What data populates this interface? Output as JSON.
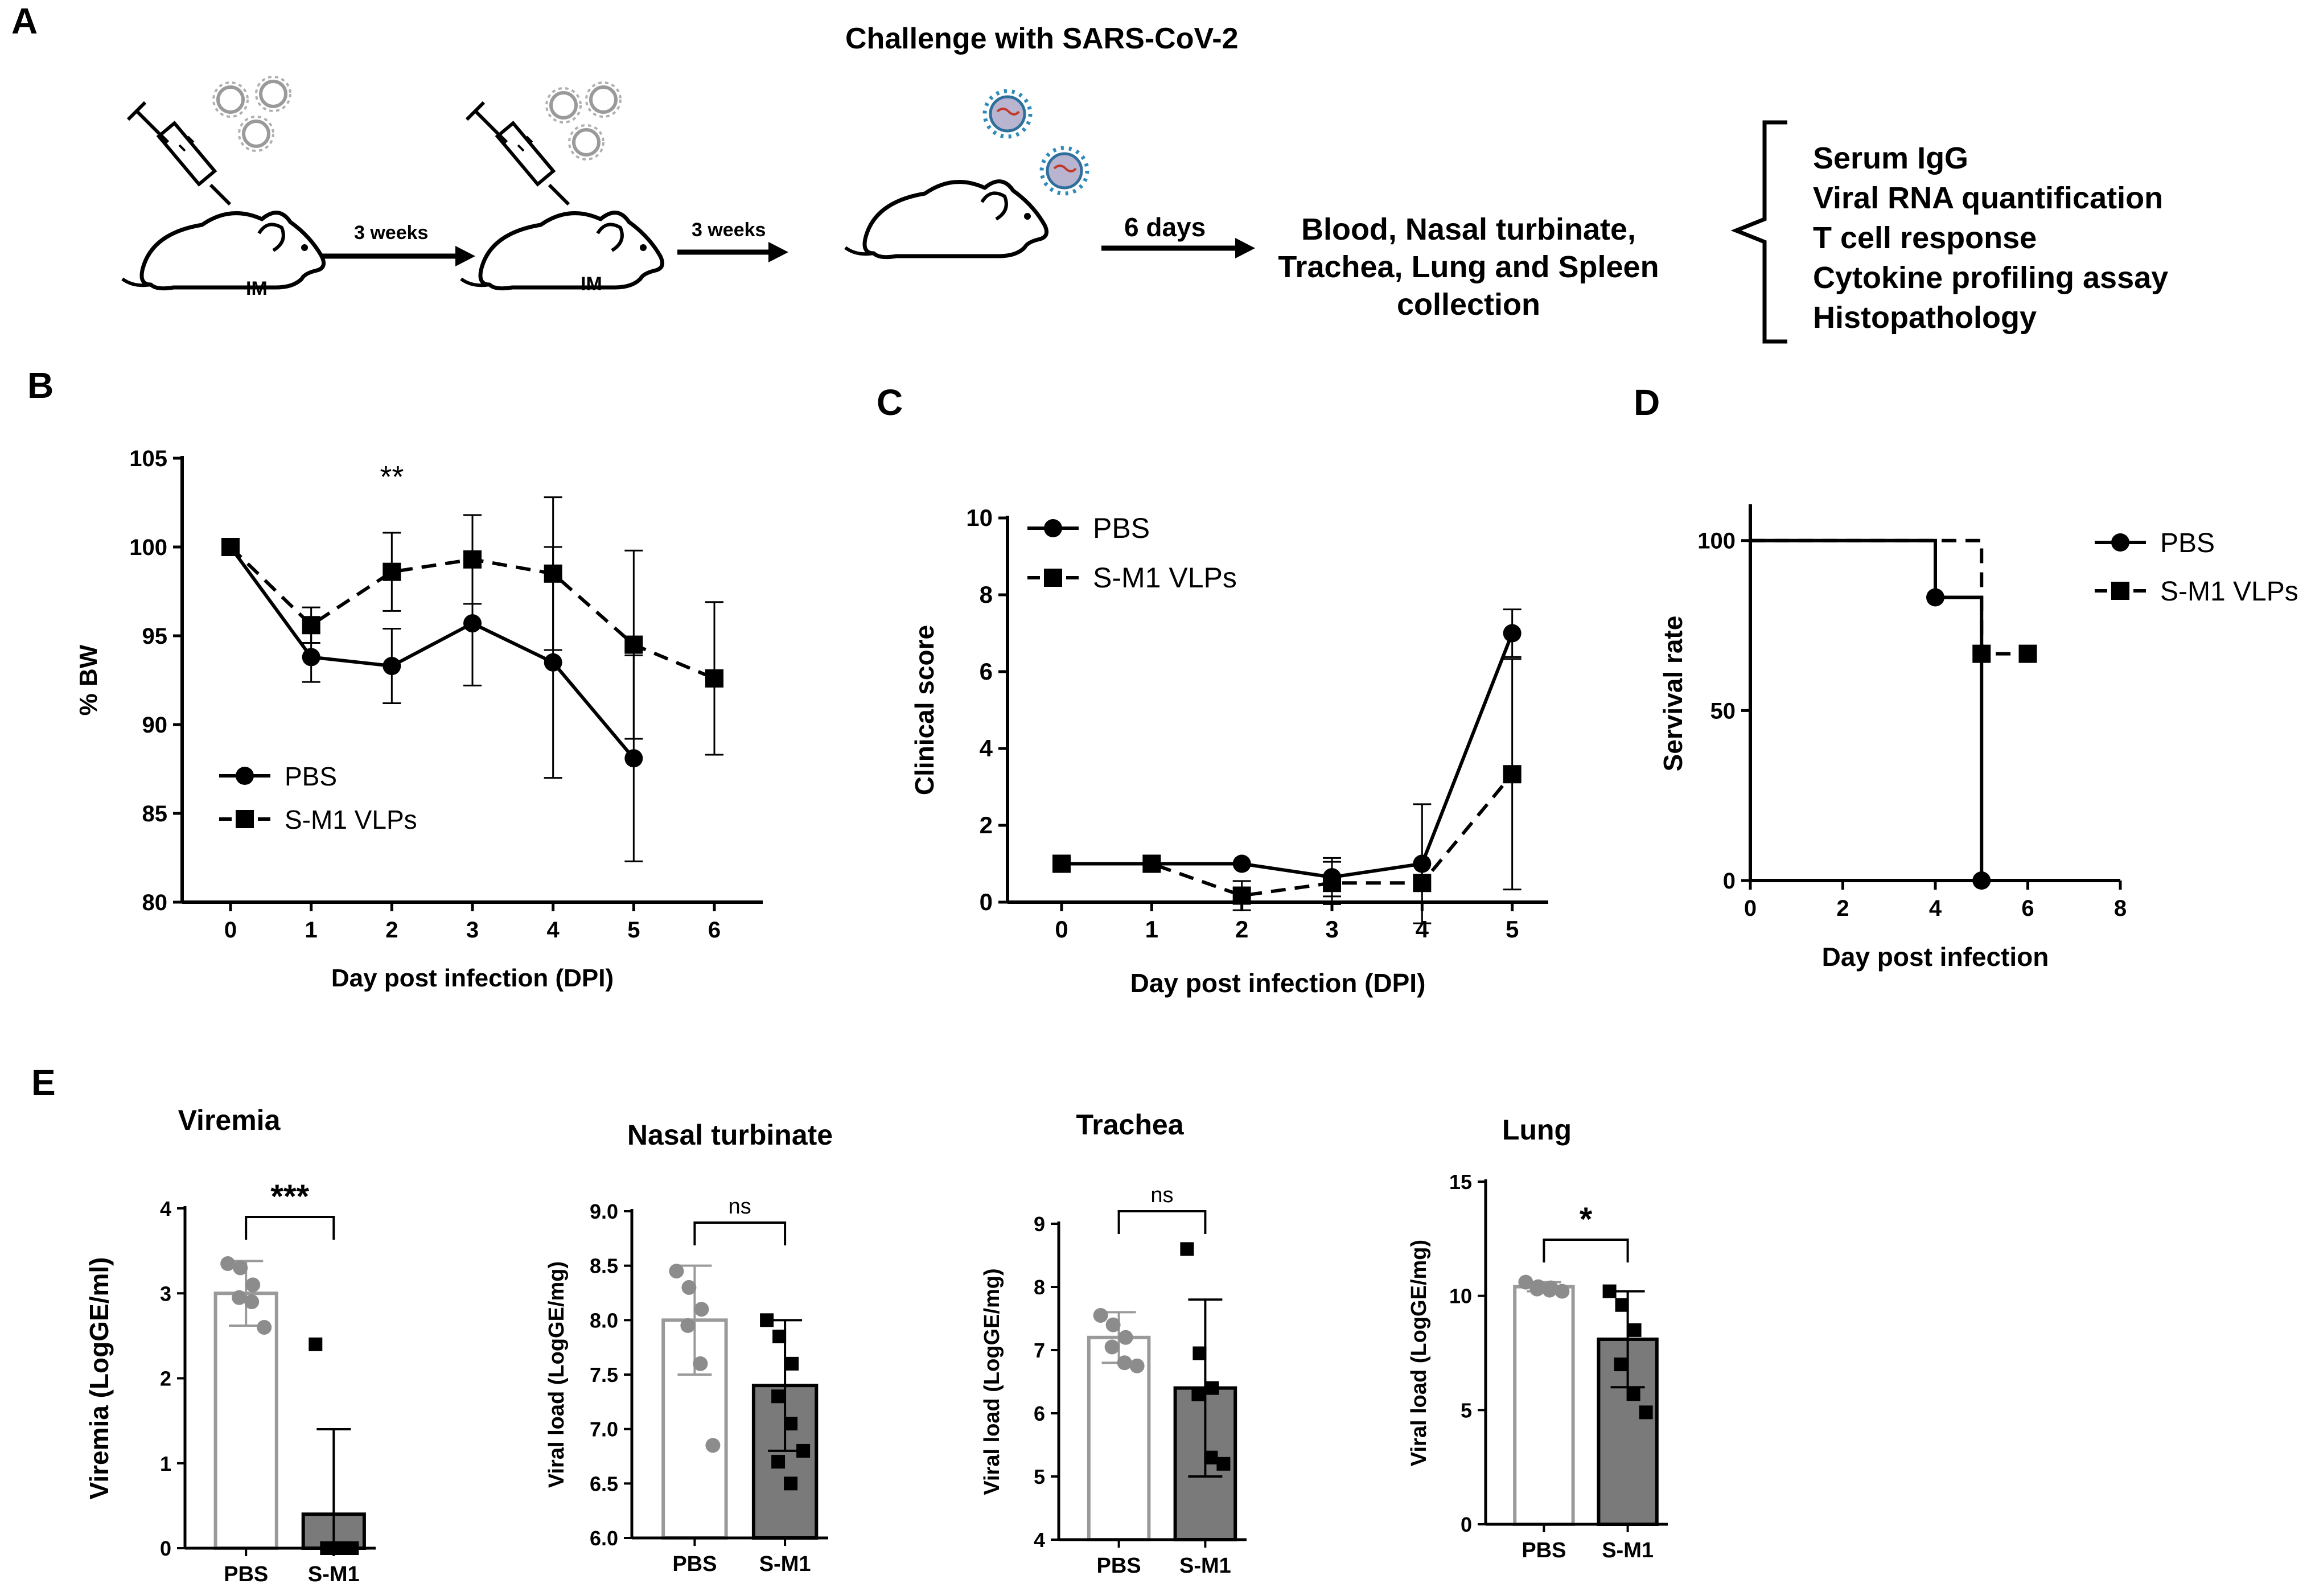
{
  "panels": {
    "A": "A",
    "B": "B",
    "C": "C",
    "D": "D",
    "E": "E"
  },
  "schematic": {
    "title": "Challenge with SARS-CoV-2",
    "route_label_1": "IM",
    "route_label_2": "IM",
    "interval_1": "3 weeks",
    "interval_2": "3 weeks",
    "interval_3": "6 days",
    "collection_lines": [
      "Blood, Nasal turbinate,",
      "Trachea, Lung and Spleen",
      "collection"
    ],
    "assays": [
      "Serum IgG",
      "Viral RNA quantification",
      "T cell response",
      "Cytokine profiling assay",
      "Histopathology"
    ]
  },
  "colors": {
    "pbs_bar_edge": "#9a9a9a",
    "pbs_points": "#8c8c8c",
    "sm1_bar_fill": "#7a7a7a",
    "line": "#000000"
  },
  "chart_data": [
    {
      "id": "B",
      "type": "line",
      "title": "",
      "xlabel": "Day post infection (DPI)",
      "ylabel": "% BW",
      "xlim": [
        -0.6,
        6.6
      ],
      "ylim": [
        80,
        105
      ],
      "xticks": [
        "0",
        "1",
        "2",
        "3",
        "4",
        "5",
        "6"
      ],
      "yticks": [
        "80",
        "85",
        "90",
        "95",
        "100",
        "105"
      ],
      "annotation": "**",
      "annotation_x": 2,
      "series": [
        {
          "name": "PBS",
          "marker": "circle",
          "dash": false,
          "x": [
            0,
            1,
            2,
            3,
            4,
            5
          ],
          "y": [
            100,
            93.8,
            93.3,
            95.7,
            93.5,
            88.1
          ],
          "err": [
            0,
            1.4,
            2.1,
            3.5,
            6.5,
            5.8
          ]
        },
        {
          "name": "S-M1 VLPs",
          "marker": "square",
          "dash": true,
          "x": [
            0,
            1,
            2,
            3,
            4,
            5,
            6
          ],
          "y": [
            100,
            95.6,
            98.6,
            99.3,
            98.5,
            94.5,
            92.6
          ],
          "err": [
            0,
            1.0,
            2.2,
            2.5,
            4.3,
            5.3,
            4.3
          ]
        }
      ],
      "legend": [
        "PBS",
        "S-M1 VLPs"
      ],
      "legend_position": "bottom-left"
    },
    {
      "id": "C",
      "type": "line",
      "title": "",
      "xlabel": "Day post infection (DPI)",
      "ylabel": "Clinical score",
      "xlim": [
        -0.6,
        5.4
      ],
      "ylim": [
        0,
        10
      ],
      "xticks": [
        "0",
        "1",
        "2",
        "3",
        "4",
        "5"
      ],
      "yticks": [
        "0",
        "2",
        "4",
        "6",
        "8",
        "10"
      ],
      "series": [
        {
          "name": "PBS",
          "marker": "circle",
          "dash": false,
          "x": [
            0,
            1,
            2,
            3,
            4,
            5
          ],
          "y": [
            1.0,
            1.0,
            1.0,
            0.65,
            1.0,
            7.0
          ],
          "err": [
            0,
            0,
            0,
            0.5,
            1.55,
            0.62
          ]
        },
        {
          "name": "S-M1 VLPs",
          "marker": "square",
          "dash": true,
          "x": [
            0,
            1,
            2,
            3,
            4,
            5
          ],
          "y": [
            1.0,
            1.0,
            0.17,
            0.5,
            0.5,
            3.33
          ],
          "err": [
            0,
            0,
            0.38,
            0.55,
            0.0,
            3.0
          ]
        }
      ],
      "legend": [
        "PBS",
        "S-M1 VLPs"
      ],
      "legend_position": "top-left"
    },
    {
      "id": "D",
      "type": "line",
      "title": "",
      "xlabel": "Day post infection",
      "ylabel": "Servival rate",
      "xlim": [
        0,
        8
      ],
      "ylim": [
        0,
        110
      ],
      "xticks": [
        "0",
        "2",
        "4",
        "6",
        "8"
      ],
      "yticks": [
        "0",
        "50",
        "100"
      ],
      "series": [
        {
          "name": "PBS",
          "marker": "circle",
          "dash": false,
          "step": true,
          "x": [
            0,
            4,
            5
          ],
          "y": [
            100,
            83.3,
            0
          ]
        },
        {
          "name": "S-M1 VLPs",
          "marker": "square",
          "dash": true,
          "step": true,
          "x": [
            0,
            5,
            6
          ],
          "y": [
            100,
            66.7,
            66.7
          ]
        }
      ],
      "legend": [
        "PBS",
        "S-M1 VLPs"
      ],
      "legend_position": "top-right"
    },
    {
      "id": "E1",
      "type": "bar",
      "title": "Viremia",
      "ylabel": "Viremia (LogGE/ml)",
      "ylim": [
        0,
        4
      ],
      "yticks": [
        "0",
        "1",
        "2",
        "3",
        "4"
      ],
      "categories": [
        "PBS",
        "S-M1"
      ],
      "values": [
        3.0,
        0.4
      ],
      "errors": [
        0.38,
        1.0
      ],
      "points": [
        [
          3.35,
          3.3,
          3.1,
          2.95,
          2.9,
          2.6
        ],
        [
          2.4,
          0,
          0,
          0,
          0,
          0
        ]
      ],
      "significance": "***"
    },
    {
      "id": "E2",
      "type": "bar",
      "title": "Nasal turbinate",
      "ylabel": "Viral load (LogGE/mg)",
      "ylim": [
        6.0,
        9.0
      ],
      "yticks": [
        "6.0",
        "6.5",
        "7.0",
        "7.5",
        "8.0",
        "8.5",
        "9.0"
      ],
      "categories": [
        "PBS",
        "S-M1"
      ],
      "values": [
        8.0,
        7.4
      ],
      "errors": [
        0.5,
        0.6
      ],
      "points": [
        [
          8.45,
          8.3,
          8.1,
          7.95,
          7.6,
          6.85
        ],
        [
          8.0,
          7.85,
          7.6,
          7.3,
          7.05,
          6.8,
          6.7,
          6.5
        ]
      ],
      "significance": "ns"
    },
    {
      "id": "E3",
      "type": "bar",
      "title": "Trachea",
      "ylabel": "Viral load (LogGE/mg)",
      "ylim": [
        4,
        9
      ],
      "yticks": [
        "4",
        "5",
        "6",
        "7",
        "8",
        "9"
      ],
      "categories": [
        "PBS",
        "S-M1"
      ],
      "values": [
        7.2,
        6.4
      ],
      "errors": [
        0.4,
        1.4
      ],
      "points": [
        [
          7.55,
          7.4,
          7.2,
          7.05,
          6.8,
          6.75
        ],
        [
          8.6,
          6.95,
          6.4,
          6.3,
          5.3,
          5.2
        ]
      ],
      "significance": "ns"
    },
    {
      "id": "E4",
      "type": "bar",
      "title": "Lung",
      "ylabel": "Viral load (LogGE/mg)",
      "ylim": [
        0,
        15
      ],
      "yticks": [
        "0",
        "5",
        "10",
        "15"
      ],
      "categories": [
        "PBS",
        "S-M1"
      ],
      "values": [
        10.4,
        8.1
      ],
      "errors": [
        0.2,
        2.1
      ],
      "points": [
        [
          10.6,
          10.4,
          10.35,
          10.3,
          10.25,
          10.2
        ],
        [
          10.2,
          9.6,
          8.5,
          7.0,
          5.7,
          4.9
        ]
      ],
      "significance": "*"
    }
  ]
}
